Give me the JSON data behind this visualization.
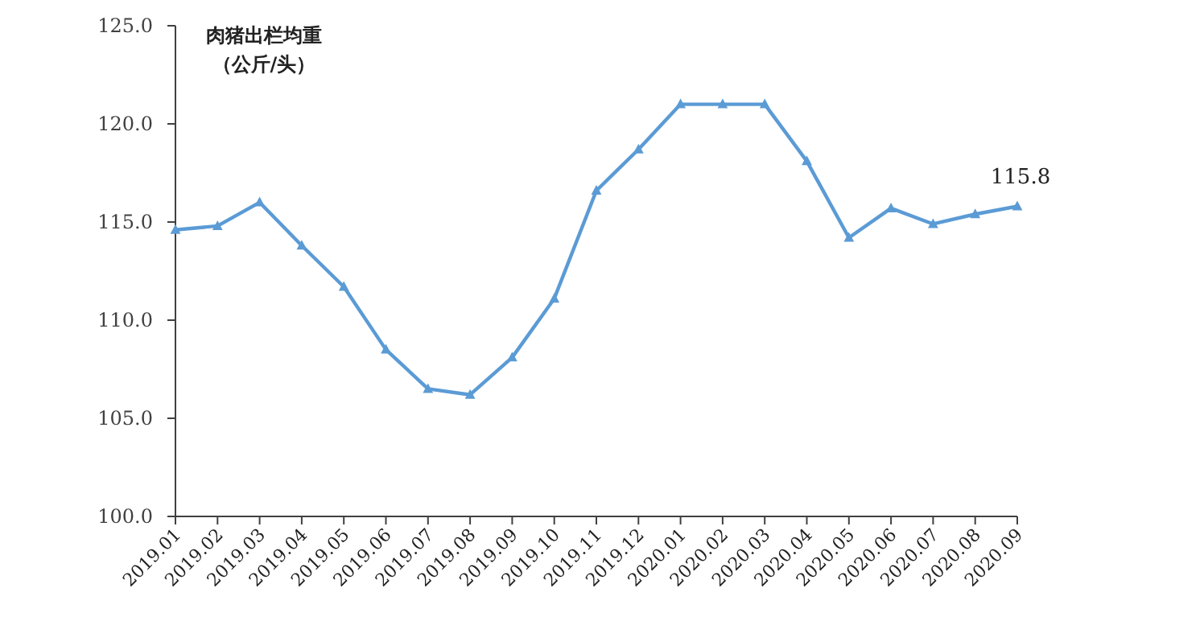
{
  "chart_data": {
    "type": "line",
    "title": "肉猪出栏均重",
    "subtitle": "（公斤/头）",
    "categories": [
      "2019.01",
      "2019.02",
      "2019.03",
      "2019.04",
      "2019.05",
      "2019.06",
      "2019.07",
      "2019.08",
      "2019.09",
      "2019.10",
      "2019.11",
      "2019.12",
      "2020.01",
      "2020.02",
      "2020.03",
      "2020.04",
      "2020.05",
      "2020.06",
      "2020.07",
      "2020.08",
      "2020.09"
    ],
    "series": [
      {
        "color": "#5b9bd5",
        "values": [
          114.6,
          114.8,
          116.0,
          113.8,
          111.7,
          108.5,
          106.5,
          106.2,
          108.1,
          111.1,
          116.6,
          118.7,
          121.0,
          121.0,
          121.0,
          118.1,
          114.2,
          115.7,
          114.9,
          115.4,
          115.8
        ]
      }
    ],
    "ylim": [
      100,
      125
    ],
    "yticks": [
      {
        "value": 100,
        "label": "100.0"
      },
      {
        "value": 105,
        "label": "105.0"
      },
      {
        "value": 110,
        "label": "110.0"
      },
      {
        "value": 115,
        "label": "115.0"
      },
      {
        "value": 120,
        "label": "120.0"
      },
      {
        "value": 125,
        "label": "125.0"
      }
    ],
    "annotations": [
      {
        "text": "115.8",
        "x": "2020.09",
        "y": 115.8
      }
    ],
    "marker": "triangle",
    "grid": false
  }
}
